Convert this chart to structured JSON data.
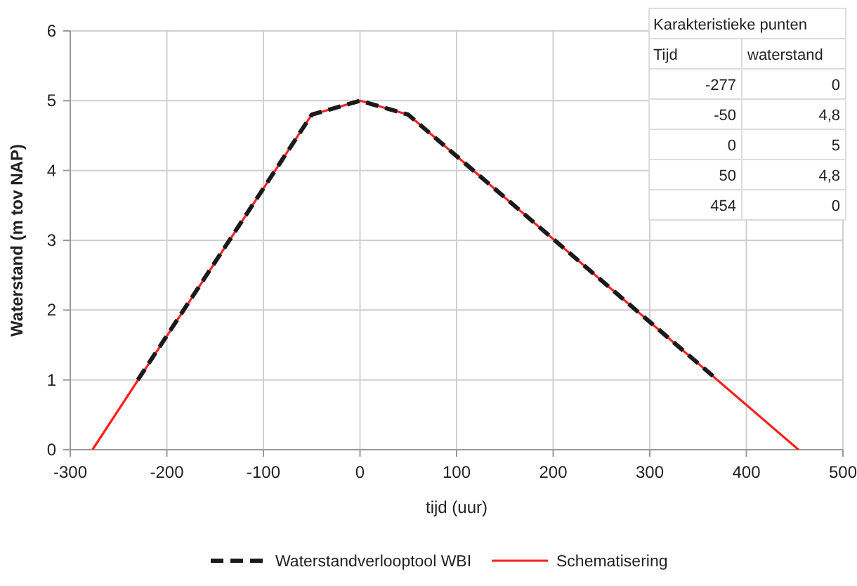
{
  "chart_data": {
    "type": "line",
    "xlabel": "tijd (uur)",
    "ylabel": "Waterstand (m tov NAP)",
    "xlim": [
      -300,
      500
    ],
    "xticks": [
      -300,
      -200,
      -100,
      0,
      100,
      200,
      300,
      400,
      500
    ],
    "ylim": [
      0,
      6
    ],
    "yticks": [
      0,
      1,
      2,
      3,
      4,
      5,
      6
    ],
    "grid": true,
    "legend": "bottom",
    "marker": "none",
    "series": [
      {
        "name": "Waterstandverlooptool WBI",
        "color": "#1a1a1a",
        "line_style": "dashed",
        "x": [
          -230,
          -50,
          0,
          50,
          370
        ],
        "values": [
          1.0,
          4.8,
          5,
          4.8,
          1.0
        ]
      },
      {
        "name": "Schematisering",
        "color": "#ff2020",
        "line_style": "solid",
        "x": [
          -277,
          -50,
          0,
          50,
          454
        ],
        "values": [
          0,
          4.8,
          5,
          4.8,
          0
        ]
      }
    ],
    "annotations": [
      "Karakteristieke punten",
      "Tijd",
      "waterstand",
      "-277",
      "0",
      "-50",
      "4,8",
      "0",
      "5",
      "50",
      "4,8",
      "454",
      "0"
    ]
  }
}
